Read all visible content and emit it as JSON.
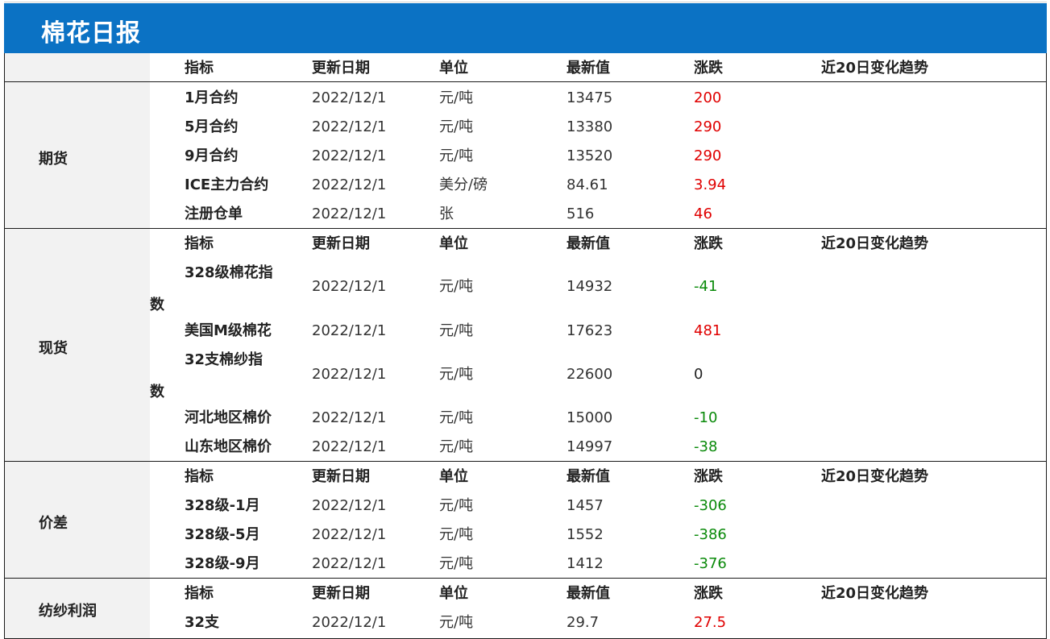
{
  "page_title": "棉花日报",
  "columns": [
    "指标",
    "更新日期",
    "单位",
    "最新值",
    "涨跌",
    "近20日变化趋势"
  ],
  "colors": {
    "title_bar": "#0b72c4",
    "up": "#e00000",
    "down": "#0a8a0a"
  },
  "sections": [
    {
      "label": "期货",
      "rows": [
        {
          "name": "1月合约",
          "date": "2022/12/1",
          "unit": "元/吨",
          "value": "13475",
          "change": "200",
          "dir": "up"
        },
        {
          "name": "5月合约",
          "date": "2022/12/1",
          "unit": "元/吨",
          "value": "13380",
          "change": "290",
          "dir": "up"
        },
        {
          "name": "9月合约",
          "date": "2022/12/1",
          "unit": "元/吨",
          "value": "13520",
          "change": "290",
          "dir": "up"
        },
        {
          "name": "ICE主力合约",
          "date": "2022/12/1",
          "unit": "美分/磅",
          "value": "84.61",
          "change": "3.94",
          "dir": "up"
        },
        {
          "name": "注册仓单",
          "date": "2022/12/1",
          "unit": "张",
          "value": "516",
          "change": "46",
          "dir": "up"
        }
      ]
    },
    {
      "label": "现货",
      "rows": [
        {
          "name": "328级棉花指",
          "name_tail": "数",
          "date": "2022/12/1",
          "unit": "元/吨",
          "value": "14932",
          "change": "-41",
          "dir": "down"
        },
        {
          "name": "美国M级棉花",
          "date": "2022/12/1",
          "unit": "元/吨",
          "value": "17623",
          "change": "481",
          "dir": "up"
        },
        {
          "name": "32支棉纱指",
          "name_tail": "数",
          "date": "2022/12/1",
          "unit": "元/吨",
          "value": "22600",
          "change": "0",
          "dir": "flat"
        },
        {
          "name": "河北地区棉价",
          "date": "2022/12/1",
          "unit": "元/吨",
          "value": "15000",
          "change": "-10",
          "dir": "down"
        },
        {
          "name": "山东地区棉价",
          "date": "2022/12/1",
          "unit": "元/吨",
          "value": "14997",
          "change": "-38",
          "dir": "down"
        }
      ]
    },
    {
      "label": "价差",
      "rows": [
        {
          "name": "328级-1月",
          "date": "2022/12/1",
          "unit": "元/吨",
          "value": "1457",
          "change": "-306",
          "dir": "down"
        },
        {
          "name": "328级-5月",
          "date": "2022/12/1",
          "unit": "元/吨",
          "value": "1552",
          "change": "-386",
          "dir": "down"
        },
        {
          "name": "328级-9月",
          "date": "2022/12/1",
          "unit": "元/吨",
          "value": "1412",
          "change": "-376",
          "dir": "down"
        }
      ]
    },
    {
      "label": "纺纱利润",
      "rows": [
        {
          "name": "32支",
          "date": "2022/12/1",
          "unit": "元/吨",
          "value": "29.7",
          "change": "27.5",
          "dir": "up"
        }
      ]
    }
  ]
}
